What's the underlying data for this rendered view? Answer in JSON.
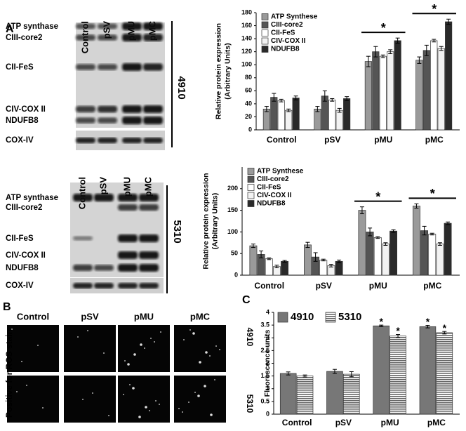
{
  "panel_labels": [
    "A",
    "B",
    "C"
  ],
  "blots": [
    {
      "lanes": [
        "Control",
        "pSV",
        "pMU",
        "pMC"
      ],
      "rows": [
        "ATP synthase",
        "CIII-core2",
        "CII-FeS",
        "CIV-COX II",
        "NDUFB8"
      ],
      "loading": "COX-IV",
      "cell_line": "4910"
    },
    {
      "lanes": [
        "Control",
        "pSV",
        "pMU",
        "pMC"
      ],
      "rows": [
        "ATP synthase",
        "CIII-core2",
        "CII-FeS",
        "CIV-COX II",
        "NDUFB8"
      ],
      "loading": "COX-IV",
      "cell_line": "5310"
    }
  ],
  "ros": {
    "columns": [
      "Control",
      "pSV",
      "pMU",
      "pMC"
    ],
    "rows": [
      "4910",
      "5310"
    ],
    "stain_label": "Positive for ROS stain"
  },
  "chart_data": [
    {
      "type": "bar",
      "ylabel": [
        "Relative protein expression",
        "(Arbitrary Units)"
      ],
      "categories": [
        "Control",
        "pSV",
        "pMU",
        "pMC"
      ],
      "ylim": [
        0,
        180
      ],
      "yticks": [
        0,
        20,
        40,
        60,
        80,
        100,
        120,
        140,
        160,
        180
      ],
      "legend": "upper left",
      "significance": [
        null,
        null,
        "*",
        "*"
      ],
      "series": [
        {
          "name": "ATP Synthese",
          "color": "#9a9a9a",
          "values": [
            32,
            32,
            105,
            107
          ],
          "errors": [
            4,
            4,
            8,
            5
          ]
        },
        {
          "name": "CIII-core2",
          "color": "#555555",
          "values": [
            50,
            52,
            120,
            122
          ],
          "errors": [
            6,
            8,
            8,
            8
          ]
        },
        {
          "name": "CII-FeS",
          "color": "#ffffff",
          "values": [
            45,
            46,
            113,
            137
          ],
          "errors": [
            2,
            2,
            2,
            2
          ]
        },
        {
          "name": "CIV-COX II",
          "color": "#f2f2f2",
          "values": [
            30,
            30,
            120,
            125
          ],
          "errors": [
            2,
            3,
            3,
            3
          ]
        },
        {
          "name": "NDUFB8",
          "color": "#2a2a2a",
          "values": [
            49,
            48,
            137,
            166
          ],
          "errors": [
            3,
            3,
            4,
            4
          ]
        }
      ]
    },
    {
      "type": "bar",
      "ylabel": [
        "Relative protein expression",
        "(Arbitrary Units)"
      ],
      "categories": [
        "Control",
        "pSV",
        "pMU",
        "pMC"
      ],
      "ylim": [
        0,
        250
      ],
      "yticks": [
        0,
        50,
        100,
        150,
        200
      ],
      "legend": "upper left",
      "significance": [
        null,
        null,
        "*",
        "*"
      ],
      "series": [
        {
          "name": "ATP Synthese",
          "color": "#9a9a9a",
          "values": [
            68,
            70,
            150,
            160
          ],
          "errors": [
            4,
            6,
            8,
            5
          ]
        },
        {
          "name": "CIII-core2",
          "color": "#555555",
          "values": [
            48,
            42,
            100,
            103
          ],
          "errors": [
            8,
            10,
            9,
            10
          ]
        },
        {
          "name": "CII-FeS",
          "color": "#ffffff",
          "values": [
            38,
            35,
            87,
            95
          ],
          "errors": [
            2,
            2,
            2,
            2
          ]
        },
        {
          "name": "CIV-COX II",
          "color": "#f2f2f2",
          "values": [
            20,
            22,
            72,
            72
          ],
          "errors": [
            3,
            3,
            3,
            3
          ]
        },
        {
          "name": "NDUFB8",
          "color": "#2a2a2a",
          "values": [
            32,
            32,
            102,
            120
          ],
          "errors": [
            2,
            3,
            3,
            3
          ]
        }
      ]
    },
    {
      "type": "bar",
      "ylabel": [
        "Fluorescence units"
      ],
      "categories": [
        "Control",
        "pSV",
        "pMU",
        "pMC"
      ],
      "ylim": [
        0,
        4
      ],
      "yticks": [
        0,
        0.5,
        1,
        1.5,
        2,
        2.5,
        3,
        3.5,
        4
      ],
      "legend": "top",
      "series": [
        {
          "name": "4910",
          "color": "#777777",
          "values": [
            1.6,
            1.68,
            3.47,
            3.44
          ],
          "errors": [
            0.06,
            0.08,
            0.03,
            0.05
          ],
          "markers": [
            null,
            null,
            "*",
            "*"
          ]
        },
        {
          "name": "5310",
          "color": "#888888",
          "hatch": true,
          "values": [
            1.5,
            1.57,
            3.07,
            3.2
          ],
          "errors": [
            0.04,
            0.1,
            0.06,
            0.05
          ],
          "markers": [
            null,
            null,
            "*",
            "*"
          ]
        }
      ]
    }
  ]
}
